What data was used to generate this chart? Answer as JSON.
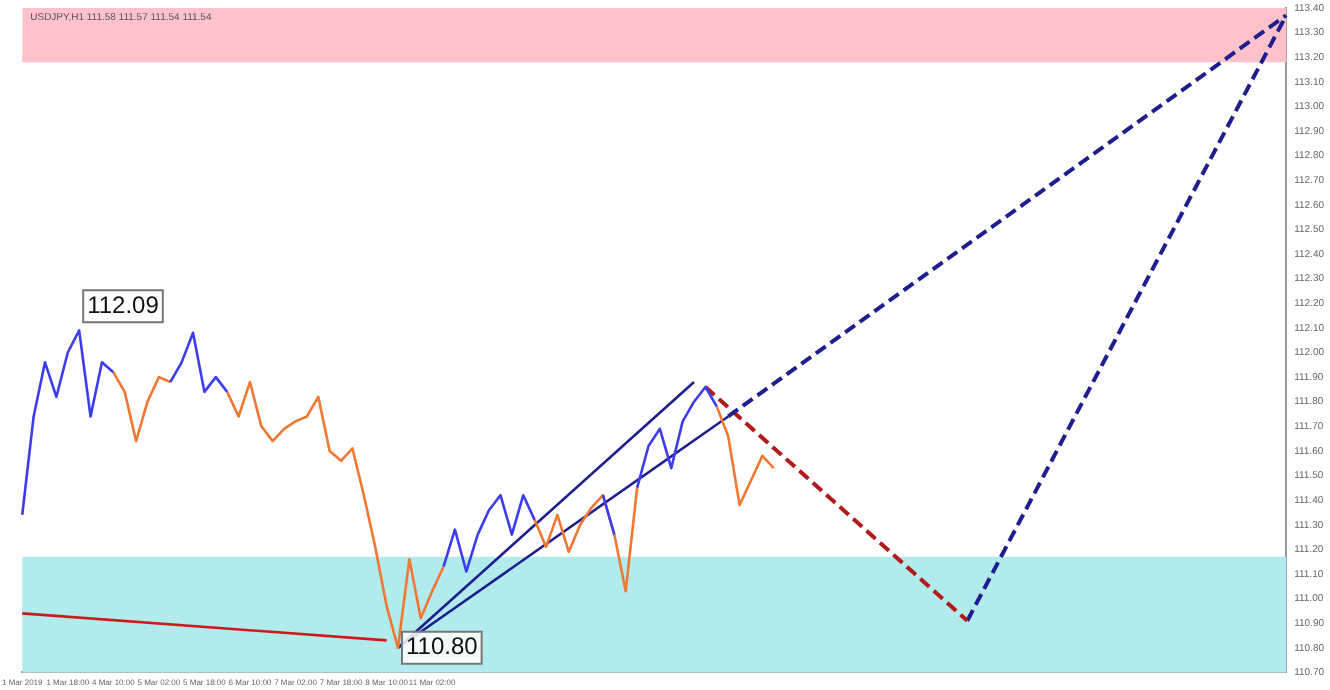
{
  "chart_data": {
    "type": "line",
    "title": "USDJPY,H1 111.58 111.57 111.54 111.54",
    "categories": [
      "1 Mar 2019",
      null,
      null,
      null,
      "1 Mar 18:00",
      null,
      null,
      null,
      "4 Mar 10:00",
      null,
      null,
      null,
      "5 Mar 02:00",
      null,
      null,
      null,
      "5 Mar 18:00",
      null,
      null,
      null,
      "6 Mar 10:00",
      null,
      null,
      null,
      "7 Mar 02:00",
      null,
      null,
      null,
      "7 Mar 18:00",
      null,
      null,
      null,
      "8 Mar 10:00",
      null,
      null,
      null,
      "11 Mar 02:00",
      null,
      null,
      null,
      null,
      null,
      null,
      null,
      null,
      null,
      null,
      null,
      null,
      null,
      null,
      null,
      null,
      null,
      null,
      null,
      null,
      null,
      null,
      null,
      null,
      null,
      null,
      null,
      null,
      null,
      null,
      null,
      null,
      null,
      null,
      null,
      null,
      null,
      null,
      null,
      null,
      null,
      null,
      null,
      null,
      null,
      null,
      null,
      null,
      null,
      null,
      null,
      null,
      null,
      null,
      null,
      null,
      null,
      null,
      null,
      null,
      null,
      null,
      null,
      null,
      null,
      null,
      null,
      null,
      null,
      null,
      null,
      null,
      null,
      null,
      null
    ],
    "ylim": [
      110.7,
      113.4
    ],
    "yticks": [
      {
        "value": 110.7,
        "label": "110.70"
      },
      {
        "value": 110.8,
        "label": "110.80"
      },
      {
        "value": 110.9,
        "label": "110.90"
      },
      {
        "value": 111,
        "label": "111.00"
      },
      {
        "value": 111.1,
        "label": "111.10"
      },
      {
        "value": 111.2,
        "label": "111.20"
      },
      {
        "value": 111.3,
        "label": "111.30"
      },
      {
        "value": 111.4,
        "label": "111.40"
      },
      {
        "value": 111.5,
        "label": "111.50"
      },
      {
        "value": 111.6,
        "label": "111.60"
      },
      {
        "value": 111.7,
        "label": "111.70"
      },
      {
        "value": 111.8,
        "label": "111.80"
      },
      {
        "value": 111.9,
        "label": "111.90"
      },
      {
        "value": 112,
        "label": "112.00"
      },
      {
        "value": 112.1,
        "label": "112.10"
      },
      {
        "value": 112.2,
        "label": "112.20"
      },
      {
        "value": 112.3,
        "label": "112.30"
      },
      {
        "value": 112.4,
        "label": "112.40"
      },
      {
        "value": 112.5,
        "label": "112.50"
      },
      {
        "value": 112.6,
        "label": "112.60"
      },
      {
        "value": 112.7,
        "label": "112.70"
      },
      {
        "value": 112.8,
        "label": "112.80"
      },
      {
        "value": 112.9,
        "label": "112.90"
      },
      {
        "value": 113,
        "label": "113.00"
      },
      {
        "value": 113.1,
        "label": "113.10"
      },
      {
        "value": 113.2,
        "label": "113.20"
      },
      {
        "value": 113.3,
        "label": "113.30"
      },
      {
        "value": 113.4,
        "label": "113.40"
      }
    ],
    "grid": false,
    "legend": false,
    "marker": "none",
    "bands": [
      {
        "axis": "y",
        "from": 110.7,
        "to": 111.17,
        "color": "#b2ebeb"
      },
      {
        "axis": "y",
        "from": 113.18,
        "to": 113.4,
        "color": "#ffc1cc"
      }
    ],
    "annotations": [
      "112.09",
      "110.80"
    ],
    "series": [
      {
        "color": "#3c3cf0",
        "values": [
          111.34,
          111.74,
          111.96,
          111.82,
          112.0,
          112.09,
          111.74,
          111.96,
          111.92,
          null,
          null,
          null,
          null,
          111.88,
          111.96,
          112.08,
          111.84,
          111.9,
          111.84,
          null,
          null,
          null,
          null,
          null,
          null,
          null,
          null,
          null,
          null,
          null,
          null,
          null,
          null,
          null,
          null,
          null,
          null,
          111.13,
          111.28,
          111.11,
          111.26,
          111.36,
          111.42,
          111.26,
          111.42,
          111.32,
          null,
          null,
          null,
          null,
          null,
          111.42,
          111.26,
          null,
          111.45,
          111.62,
          111.69,
          111.53,
          111.72,
          111.8,
          111.86,
          111.78,
          null,
          null,
          null,
          null,
          null,
          null,
          null,
          null,
          null,
          null,
          null,
          null,
          null,
          null,
          null,
          null,
          null,
          null,
          null,
          null,
          null,
          null,
          null,
          null,
          null,
          null,
          null,
          null,
          null,
          null,
          null,
          null,
          null,
          null,
          null,
          null,
          null,
          null,
          null,
          null,
          null,
          null,
          null,
          null,
          null,
          null,
          null,
          null,
          null,
          null
        ]
      },
      {
        "color": "#f07832",
        "values": [
          null,
          null,
          null,
          null,
          null,
          null,
          null,
          null,
          111.92,
          111.84,
          111.64,
          111.8,
          111.9,
          111.88,
          null,
          null,
          null,
          null,
          111.84,
          111.74,
          111.88,
          111.7,
          111.64,
          111.69,
          111.72,
          111.74,
          111.82,
          111.6,
          111.56,
          111.61,
          111.42,
          111.21,
          110.97,
          110.8,
          111.16,
          110.92,
          111.03,
          111.13,
          null,
          null,
          null,
          null,
          null,
          null,
          null,
          111.32,
          111.21,
          111.34,
          111.19,
          111.3,
          111.37,
          111.42,
          111.26,
          111.03,
          111.45,
          null,
          null,
          null,
          null,
          null,
          null,
          111.78,
          111.66,
          111.38,
          111.48,
          111.58,
          111.53,
          null,
          null,
          null,
          null,
          null,
          null,
          null,
          null,
          null,
          null,
          null,
          null,
          null,
          null,
          null,
          null,
          null,
          null,
          null,
          null,
          null,
          null,
          null,
          null,
          null,
          null,
          null,
          null,
          null,
          null,
          null,
          null,
          null,
          null,
          null,
          null,
          null,
          null,
          null,
          null,
          null,
          null,
          null,
          null,
          null
        ]
      },
      {
        "color": "#cc1a1a",
        "line_style": "solid",
        "values": [
          110.94,
          null,
          null,
          null,
          null,
          null,
          null,
          null,
          null,
          null,
          null,
          null,
          null,
          null,
          null,
          null,
          null,
          null,
          null,
          null,
          null,
          null,
          null,
          null,
          null,
          null,
          null,
          null,
          null,
          null,
          null,
          null,
          110.83,
          null,
          null,
          null,
          null,
          null,
          null,
          null,
          null,
          null,
          null,
          null,
          null,
          null,
          null,
          null,
          null,
          null,
          null,
          null,
          null,
          null,
          null,
          null,
          null,
          null,
          null,
          null,
          null,
          null,
          null,
          null,
          null,
          null,
          null,
          null,
          null,
          null,
          null,
          null,
          null,
          null,
          null,
          null,
          null,
          null,
          null,
          null,
          null,
          null,
          null,
          null,
          null,
          null,
          null,
          null,
          null,
          null,
          null,
          null,
          null,
          null,
          null,
          null,
          null,
          null,
          null,
          null,
          null,
          null,
          null,
          null,
          null,
          null,
          null,
          null,
          null,
          null,
          null,
          null
        ]
      },
      {
        "color": "#1e1e8c",
        "line_style": "solid",
        "values": [
          null,
          null,
          null,
          null,
          null,
          null,
          null,
          null,
          null,
          null,
          null,
          null,
          null,
          null,
          null,
          null,
          null,
          null,
          null,
          null,
          null,
          null,
          null,
          null,
          null,
          null,
          null,
          null,
          null,
          null,
          null,
          null,
          null,
          110.8,
          null,
          null,
          null,
          null,
          null,
          null,
          null,
          null,
          null,
          null,
          null,
          null,
          null,
          null,
          null,
          null,
          null,
          null,
          null,
          null,
          null,
          null,
          null,
          null,
          null,
          111.88,
          null,
          null,
          null,
          null,
          null,
          null,
          null,
          null,
          null,
          null,
          null,
          null,
          null,
          null,
          null,
          null,
          null,
          null,
          null,
          null,
          null,
          null,
          null,
          null,
          null,
          null,
          null,
          null,
          null,
          null,
          null,
          null,
          null,
          null,
          null,
          null,
          null,
          null,
          null,
          null,
          null,
          null,
          null,
          null,
          null,
          null,
          null,
          null,
          null,
          null,
          null,
          null
        ]
      },
      {
        "color": "#1e1e8c",
        "line_style": "solid",
        "values": [
          null,
          null,
          null,
          null,
          null,
          null,
          null,
          null,
          null,
          null,
          null,
          null,
          null,
          null,
          null,
          null,
          null,
          null,
          null,
          null,
          null,
          null,
          null,
          null,
          null,
          null,
          null,
          null,
          null,
          null,
          null,
          null,
          null,
          110.8,
          null,
          null,
          null,
          null,
          null,
          null,
          null,
          null,
          null,
          null,
          null,
          null,
          null,
          null,
          null,
          null,
          null,
          null,
          null,
          null,
          null,
          null,
          null,
          null,
          null,
          null,
          null,
          null,
          111.74,
          null,
          null,
          null,
          null,
          null,
          null,
          null,
          null,
          null,
          null,
          null,
          null,
          null,
          null,
          null,
          null,
          null,
          null,
          null,
          null,
          null,
          null,
          null,
          null,
          null,
          null,
          null,
          null,
          null,
          null,
          null,
          null,
          null,
          null,
          null,
          null,
          null,
          null,
          null,
          null,
          null,
          null,
          null,
          null,
          null,
          null,
          null,
          null,
          null
        ]
      },
      {
        "color": "#1e1e8c",
        "line_style": "dashed",
        "values": [
          null,
          null,
          null,
          null,
          null,
          null,
          null,
          null,
          null,
          null,
          null,
          null,
          null,
          null,
          null,
          null,
          null,
          null,
          null,
          null,
          null,
          null,
          null,
          null,
          null,
          null,
          null,
          null,
          null,
          null,
          null,
          null,
          null,
          null,
          null,
          null,
          null,
          null,
          null,
          null,
          null,
          null,
          null,
          null,
          null,
          null,
          null,
          null,
          null,
          null,
          null,
          null,
          null,
          null,
          null,
          null,
          null,
          null,
          null,
          null,
          null,
          null,
          111.74,
          null,
          null,
          null,
          null,
          null,
          null,
          null,
          null,
          null,
          null,
          null,
          null,
          null,
          null,
          null,
          null,
          null,
          null,
          null,
          null,
          null,
          null,
          null,
          null,
          null,
          null,
          null,
          null,
          null,
          null,
          null,
          null,
          null,
          null,
          null,
          null,
          null,
          null,
          null,
          null,
          null,
          null,
          null,
          null,
          null,
          null,
          null,
          null,
          113.37
        ]
      },
      {
        "color": "#b01a1a",
        "line_style": "dashed",
        "values": [
          null,
          null,
          null,
          null,
          null,
          null,
          null,
          null,
          null,
          null,
          null,
          null,
          null,
          null,
          null,
          null,
          null,
          null,
          null,
          null,
          null,
          null,
          null,
          null,
          null,
          null,
          null,
          null,
          null,
          null,
          null,
          null,
          null,
          null,
          null,
          null,
          null,
          null,
          null,
          null,
          null,
          null,
          null,
          null,
          null,
          null,
          null,
          null,
          null,
          null,
          null,
          null,
          null,
          null,
          null,
          null,
          null,
          null,
          null,
          null,
          111.86,
          null,
          null,
          null,
          null,
          null,
          null,
          null,
          null,
          null,
          null,
          null,
          null,
          null,
          null,
          null,
          null,
          null,
          null,
          null,
          null,
          null,
          null,
          110.91,
          null,
          null,
          null,
          null,
          null,
          null,
          null,
          null,
          null,
          null,
          null,
          null,
          null,
          null,
          null,
          null,
          null,
          null,
          null,
          null,
          null,
          null,
          null,
          null,
          null,
          null,
          null,
          null
        ]
      },
      {
        "color": "#1e1e8c",
        "line_style": "dashed",
        "values": [
          null,
          null,
          null,
          null,
          null,
          null,
          null,
          null,
          null,
          null,
          null,
          null,
          null,
          null,
          null,
          null,
          null,
          null,
          null,
          null,
          null,
          null,
          null,
          null,
          null,
          null,
          null,
          null,
          null,
          null,
          null,
          null,
          null,
          null,
          null,
          null,
          null,
          null,
          null,
          null,
          null,
          null,
          null,
          null,
          null,
          null,
          null,
          null,
          null,
          null,
          null,
          null,
          null,
          null,
          null,
          null,
          null,
          null,
          null,
          null,
          null,
          null,
          null,
          null,
          null,
          null,
          null,
          null,
          null,
          null,
          null,
          null,
          null,
          null,
          null,
          null,
          null,
          null,
          null,
          null,
          null,
          null,
          null,
          110.91,
          null,
          null,
          null,
          null,
          null,
          null,
          null,
          null,
          null,
          null,
          null,
          null,
          null,
          null,
          null,
          null,
          null,
          null,
          null,
          null,
          null,
          null,
          null,
          null,
          null,
          null,
          null,
          113.37
        ]
      }
    ]
  }
}
